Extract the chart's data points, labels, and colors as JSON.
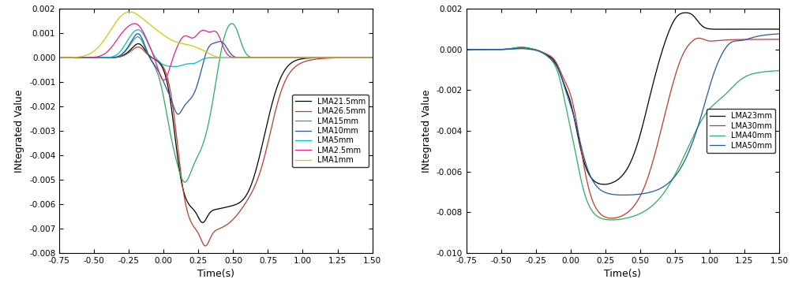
{
  "left_chart": {
    "xlabel": "Time(s)",
    "ylabel": "INtegrated Value",
    "xlim": [
      -0.75,
      1.5
    ],
    "ylim": [
      -0.008,
      0.002
    ],
    "yticks": [
      -0.008,
      -0.007,
      -0.006,
      -0.005,
      -0.004,
      -0.003,
      -0.002,
      -0.001,
      0.0,
      0.001,
      0.002
    ],
    "xticks": [
      -0.75,
      -0.5,
      -0.25,
      0.0,
      0.25,
      0.5,
      0.75,
      1.0,
      1.25,
      1.5
    ],
    "series": [
      {
        "label": "LMA21.5mm",
        "color": "#000000"
      },
      {
        "label": "LMA26.5mm",
        "color": "#c0392b"
      },
      {
        "label": "LMA15mm",
        "color": "#27ae60"
      },
      {
        "label": "LMA10mm",
        "color": "#2457a8"
      },
      {
        "label": "LMA5mm",
        "color": "#00bcd4"
      },
      {
        "label": "LMA2.5mm",
        "color": "#e91e8c"
      },
      {
        "label": "LMA1mm",
        "color": "#d4c800"
      }
    ]
  },
  "right_chart": {
    "xlabel": "Time(s)",
    "ylabel": "INtegrated Value",
    "xlim": [
      -0.75,
      1.5
    ],
    "ylim": [
      -0.01,
      0.002
    ],
    "yticks": [
      -0.01,
      -0.008,
      -0.006,
      -0.004,
      -0.002,
      0.0,
      0.002
    ],
    "xticks": [
      -0.75,
      -0.5,
      -0.25,
      0.0,
      0.25,
      0.5,
      0.75,
      1.0,
      1.25,
      1.5
    ],
    "series": [
      {
        "label": "LMA23mm",
        "color": "#000000"
      },
      {
        "label": "LMA30mm",
        "color": "#c0392b"
      },
      {
        "label": "LMA40mm",
        "color": "#27ae60"
      },
      {
        "label": "LMA50mm",
        "color": "#2457a8"
      }
    ]
  }
}
